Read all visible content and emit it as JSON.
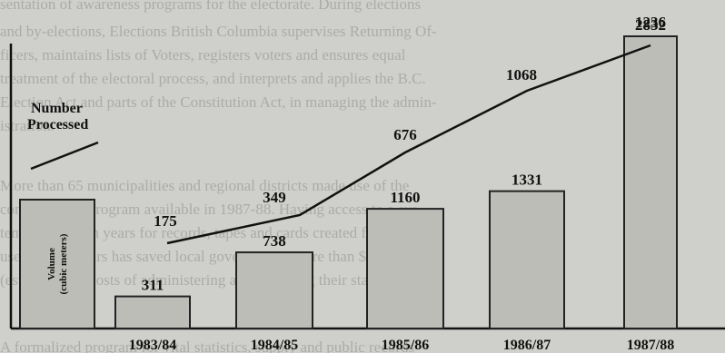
{
  "chart_data": {
    "type": "bar",
    "categories": [
      "1983/84",
      "1984/85",
      "1985/86",
      "1986/87",
      "1987/88"
    ],
    "series": [
      {
        "name": "Volume (cubic meters)",
        "type": "bar",
        "values": [
          311,
          738,
          1160,
          1331,
          2832
        ]
      },
      {
        "name": "Number Processed",
        "type": "line",
        "values": [
          175,
          349,
          676,
          1068,
          1236
        ]
      }
    ],
    "extra_bar": {
      "label": "Volume (cubic meters)"
    },
    "legend": {
      "line_label_1": "Number",
      "line_label_2": "Processed"
    },
    "grid": false
  }
}
